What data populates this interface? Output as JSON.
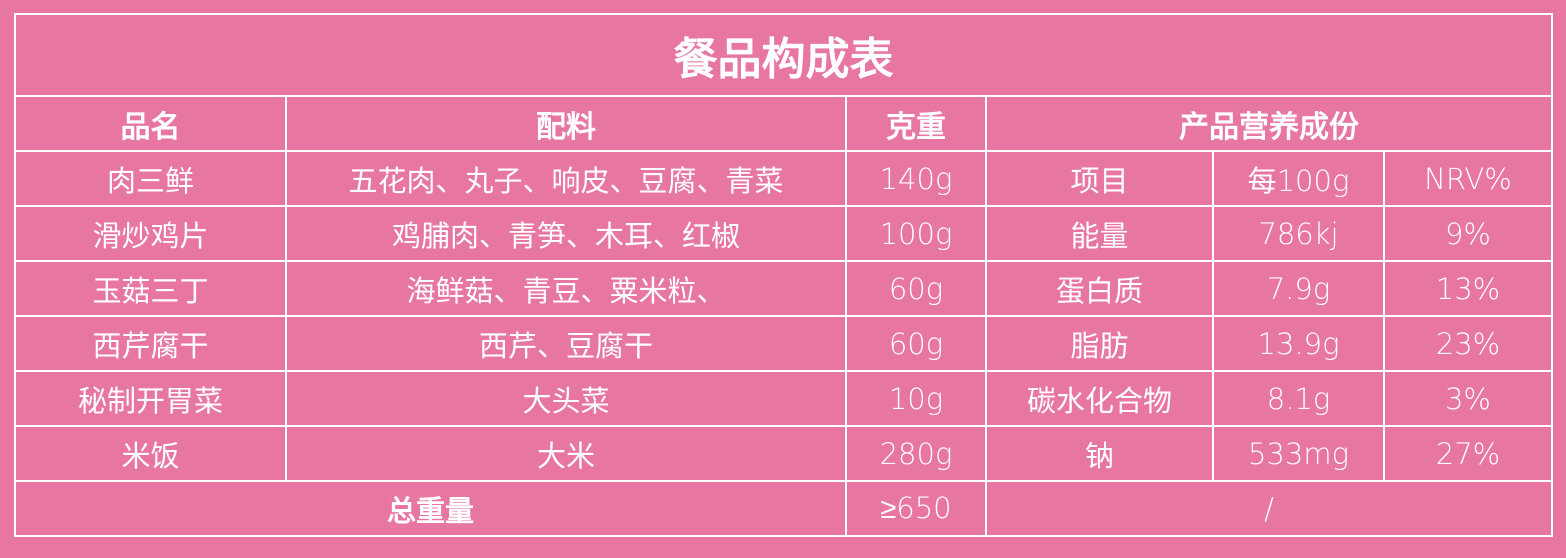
{
  "title": "餐品构成表",
  "headers": {
    "name": "品名",
    "ingredients": "配料",
    "weight": "克重",
    "nutrition": "产品营养成份"
  },
  "nutrition_headers": [
    "项目",
    "每100g",
    "NRV%"
  ],
  "rows": [
    {
      "name": "肉三鲜",
      "ingredients": "五花肉、丸子、响皮、豆腐、青菜",
      "weight": "140g"
    },
    {
      "name": "滑炒鸡片",
      "ingredients": "鸡脯肉、青笋、木耳、红椒",
      "weight": "100g"
    },
    {
      "name": "玉菇三丁",
      "ingredients": "海鲜菇、青豆、粟米粒、",
      "weight": "60g"
    },
    {
      "name": "西芹腐干",
      "ingredients": "西芹、豆腐干",
      "weight": "60g"
    },
    {
      "name": "秘制开胃菜",
      "ingredients": "大头菜",
      "weight": "10g"
    },
    {
      "name": "米饭",
      "ingredients": "大米",
      "weight": "280g"
    }
  ],
  "nutrition": [
    {
      "item": "能量",
      "per100g": "786kj",
      "nrv": "9%"
    },
    {
      "item": "蛋白质",
      "per100g": "7.9g",
      "nrv": "13%"
    },
    {
      "item": "脂肪",
      "per100g": "13.9g",
      "nrv": "23%"
    },
    {
      "item": "碳水化合物",
      "per100g": "8.1g",
      "nrv": "3%"
    },
    {
      "item": "钠",
      "per100g": "533mg",
      "nrv": "27%"
    }
  ],
  "total": {
    "label": "总重量",
    "weight": "≥650",
    "nutrition": "/"
  },
  "colors": {
    "background": "#e776a3",
    "lines": "#ffffff",
    "text": "#ffffff"
  }
}
